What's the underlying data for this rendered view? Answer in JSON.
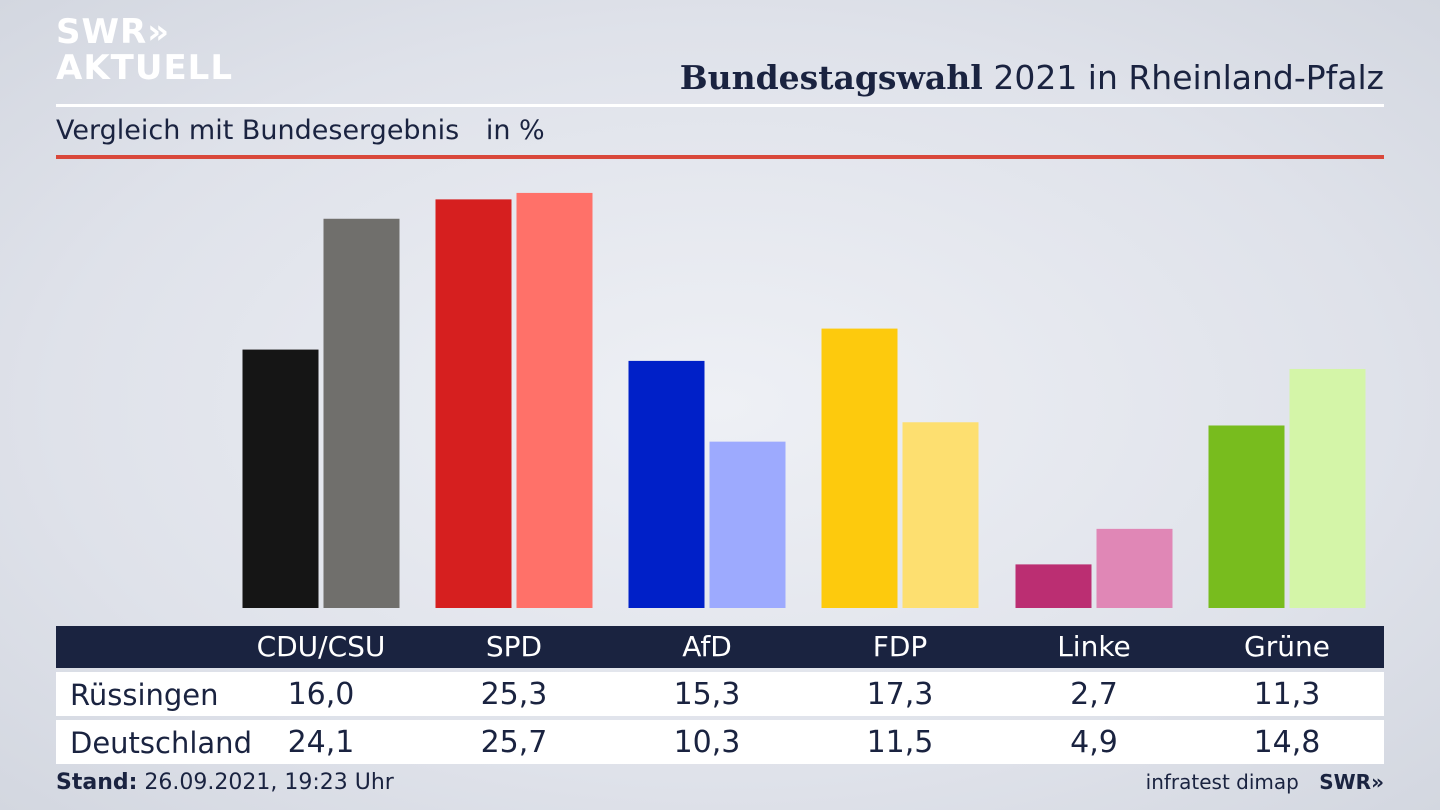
{
  "brand": {
    "logo_line1": "SWR»",
    "logo_line2": "AKTUELL"
  },
  "header": {
    "title_bold": "Bundestagswahl",
    "title_rest": "2021 in Rheinland-Pfalz",
    "subtitle": "Vergleich mit Bundesergebnis",
    "unit": "in %"
  },
  "colors": {
    "accent_rule": "#d9483b",
    "table_header": "#1a2340"
  },
  "chart_data": {
    "type": "bar",
    "categories": [
      "CDU/CSU",
      "SPD",
      "AfD",
      "FDP",
      "Linke",
      "Grüne"
    ],
    "series": [
      {
        "name": "Rüssingen",
        "values": [
          16.0,
          25.3,
          15.3,
          17.3,
          2.7,
          11.3
        ],
        "colors": [
          "#151515",
          "#d61f1f",
          "#0020c8",
          "#fdca0d",
          "#bb2e72",
          "#78bc1e"
        ]
      },
      {
        "name": "Deutschland",
        "values": [
          24.1,
          25.7,
          10.3,
          11.5,
          4.9,
          14.8
        ],
        "colors": [
          "#706f6c",
          "#ff7169",
          "#9daafe",
          "#fddf70",
          "#e087b6",
          "#d4f5a8"
        ]
      }
    ],
    "ylim": [
      0,
      26.5
    ],
    "grid": false
  },
  "table": {
    "columns": [
      "CDU/CSU",
      "SPD",
      "AfD",
      "FDP",
      "Linke",
      "Grüne"
    ],
    "rows": [
      {
        "label": "Rüssingen",
        "values": [
          "16,0",
          "25,3",
          "15,3",
          "17,3",
          "2,7",
          "11,3"
        ]
      },
      {
        "label": "Deutschland",
        "values": [
          "24,1",
          "25,7",
          "10,3",
          "11,5",
          "4,9",
          "14,8"
        ]
      }
    ]
  },
  "footer": {
    "stand_label": "Stand:",
    "stand_value": "26.09.2021, 19:23 Uhr",
    "source": "infratest dimap",
    "brand_small": "SWR»"
  }
}
